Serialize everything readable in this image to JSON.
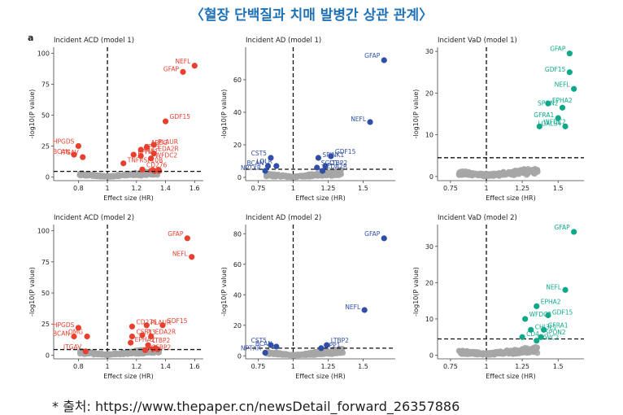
{
  "figure": {
    "title": "〈혈장 단백질과 치매 발병간 상관 관계〉",
    "panel_letter": "a",
    "source": "* 출처: https://www.thepaper.cn/newsDetail_forward_26357886",
    "colors": {
      "acd": "#e8402f",
      "ad": "#2f4ea8",
      "vad": "#0fa98a",
      "nonsig": "#a6a6a6"
    }
  },
  "chart_data": [
    {
      "type": "scatter",
      "title": "Incident ACD (model 1)",
      "xlabel": "Effect size (HR)",
      "ylabel": "-log10(P value)",
      "xlim": [
        0.63,
        1.66
      ],
      "ylim": [
        -3,
        105
      ],
      "xticks": [
        0.8,
        1.0,
        1.2,
        1.4,
        1.6
      ],
      "yticks": [
        0,
        25,
        50,
        75,
        100
      ],
      "threshold_y": 4.5,
      "reference_x": 1.0,
      "color": "#e8402f",
      "labeled_points": [
        {
          "label": "NEFL",
          "x": 1.6,
          "y": 90
        },
        {
          "label": "GFAP",
          "x": 1.52,
          "y": 85
        },
        {
          "label": "GDF15",
          "x": 1.4,
          "y": 45
        },
        {
          "label": "PLAUR",
          "x": 1.32,
          "y": 26
        },
        {
          "label": "AREG",
          "x": 1.27,
          "y": 24
        },
        {
          "label": "TFF3",
          "x": 1.23,
          "y": 22
        },
        {
          "label": "EDA2R",
          "x": 1.32,
          "y": 19
        },
        {
          "label": "EPHA2",
          "x": 1.18,
          "y": 18
        },
        {
          "label": "PI3",
          "x": 1.23,
          "y": 17
        },
        {
          "label": "WFDC2",
          "x": 1.3,
          "y": 15
        },
        {
          "label": "HPGDS",
          "x": 0.8,
          "y": 25
        },
        {
          "label": "BCAN",
          "x": 0.77,
          "y": 18
        },
        {
          "label": "ITGAV",
          "x": 0.83,
          "y": 16
        },
        {
          "label": "TNFRSF10B",
          "x": 1.11,
          "y": 11
        },
        {
          "label": "CD276",
          "x": 1.24,
          "y": 6
        }
      ]
    },
    {
      "type": "scatter",
      "title": "Incident AD (model 1)",
      "xlabel": "Effect size (HR)",
      "ylabel": "-log10(P value)",
      "xlim": [
        0.66,
        1.73
      ],
      "ylim": [
        -2,
        80
      ],
      "xticks": [
        0.75,
        1.0,
        1.25,
        1.5
      ],
      "yticks": [
        0,
        20,
        40,
        60
      ],
      "threshold_y": 5,
      "reference_x": 1.0,
      "color": "#2f4ea8",
      "labeled_points": [
        {
          "label": "GFAP",
          "x": 1.65,
          "y": 72
        },
        {
          "label": "NEFL",
          "x": 1.55,
          "y": 34
        },
        {
          "label": "GDF15",
          "x": 1.27,
          "y": 13
        },
        {
          "label": "SPINK1",
          "x": 1.18,
          "y": 12
        },
        {
          "label": "CST5",
          "x": 0.84,
          "y": 12
        },
        {
          "label": "BCAN",
          "x": 0.82,
          "y": 7
        },
        {
          "label": "LDLR",
          "x": 0.88,
          "y": 7
        },
        {
          "label": "NPTXR",
          "x": 0.8,
          "y": 4
        },
        {
          "label": "SGO1",
          "x": 1.17,
          "y": 6
        },
        {
          "label": "LTBP2",
          "x": 1.23,
          "y": 7
        },
        {
          "label": "EDA2R",
          "x": 1.21,
          "y": 4
        }
      ]
    },
    {
      "type": "scatter",
      "title": "Incident VaD (model 1)",
      "xlabel": "Effect size (HR)",
      "ylabel": "-log10(P value)",
      "xlim": [
        0.66,
        1.68
      ],
      "ylim": [
        -1,
        31
      ],
      "xticks": [
        0.75,
        1.0,
        1.25,
        1.5
      ],
      "yticks": [
        0,
        10,
        20,
        30
      ],
      "threshold_y": 4.5,
      "reference_x": 1.0,
      "color": "#0fa98a",
      "labeled_points": [
        {
          "label": "GFAP",
          "x": 1.58,
          "y": 29.5
        },
        {
          "label": "GDF15",
          "x": 1.58,
          "y": 25
        },
        {
          "label": "NEFL",
          "x": 1.61,
          "y": 21
        },
        {
          "label": "EPHA2",
          "x": 1.43,
          "y": 17.5
        },
        {
          "label": "SPON2",
          "x": 1.53,
          "y": 16.5
        },
        {
          "label": "GFRA1",
          "x": 1.5,
          "y": 14
        },
        {
          "label": "WFDC2",
          "x": 1.37,
          "y": 12
        },
        {
          "label": "LGALS4",
          "x": 1.55,
          "y": 12
        }
      ]
    },
    {
      "type": "scatter",
      "title": "Incident ACD (model 2)",
      "xlabel": "Effect size (HR)",
      "ylabel": "-log10(P value)",
      "xlim": [
        0.63,
        1.66
      ],
      "ylim": [
        -3,
        105
      ],
      "xticks": [
        0.8,
        1.0,
        1.2,
        1.4,
        1.6
      ],
      "yticks": [
        0,
        25,
        50,
        75,
        100
      ],
      "threshold_y": 4.5,
      "reference_x": 1.0,
      "color": "#e8402f",
      "labeled_points": [
        {
          "label": "GFAP",
          "x": 1.55,
          "y": 94
        },
        {
          "label": "NEFL",
          "x": 1.58,
          "y": 79
        },
        {
          "label": "GDF15",
          "x": 1.38,
          "y": 24
        },
        {
          "label": "PLAUR",
          "x": 1.27,
          "y": 24
        },
        {
          "label": "CD276",
          "x": 1.17,
          "y": 23
        },
        {
          "label": "HPGDS",
          "x": 0.8,
          "y": 22
        },
        {
          "label": "CSF1",
          "x": 1.17,
          "y": 15
        },
        {
          "label": "PI3",
          "x": 1.24,
          "y": 16
        },
        {
          "label": "EDA2R",
          "x": 1.3,
          "y": 15
        },
        {
          "label": "BCAN",
          "x": 0.77,
          "y": 15
        },
        {
          "label": "OMG",
          "x": 0.86,
          "y": 15
        },
        {
          "label": "EPHA2",
          "x": 1.16,
          "y": 10
        },
        {
          "label": "LTBP2",
          "x": 1.28,
          "y": 8
        },
        {
          "label": "IGFBP2",
          "x": 1.26,
          "y": 4
        },
        {
          "label": "ITGAV",
          "x": 0.85,
          "y": 3
        }
      ]
    },
    {
      "type": "scatter",
      "title": "Incident AD (model 2)",
      "xlabel": "Effect size (HR)",
      "ylabel": "-log10(P value)",
      "xlim": [
        0.66,
        1.73
      ],
      "ylim": [
        -2,
        86
      ],
      "xticks": [
        0.75,
        1.0,
        1.25,
        1.5
      ],
      "yticks": [
        0,
        20,
        40,
        60,
        80
      ],
      "threshold_y": 5,
      "reference_x": 1.0,
      "color": "#2f4ea8",
      "labeled_points": [
        {
          "label": "GFAP",
          "x": 1.65,
          "y": 77
        },
        {
          "label": "NEFL",
          "x": 1.51,
          "y": 30
        },
        {
          "label": "LTBP2",
          "x": 1.24,
          "y": 7
        },
        {
          "label": "SPP1",
          "x": 1.2,
          "y": 5
        },
        {
          "label": "CST5",
          "x": 0.84,
          "y": 7
        },
        {
          "label": "BCAN",
          "x": 0.88,
          "y": 6
        },
        {
          "label": "NPTXR",
          "x": 0.8,
          "y": 2
        }
      ]
    },
    {
      "type": "scatter",
      "title": "Incident VaD (model 2)",
      "xlabel": "Effect size (HR)",
      "ylabel": "-log10(P value)",
      "xlim": [
        0.66,
        1.68
      ],
      "ylim": [
        -1,
        36
      ],
      "xticks": [
        0.75,
        1.0,
        1.25,
        1.5
      ],
      "yticks": [
        0,
        10,
        20,
        30
      ],
      "threshold_y": 4.5,
      "reference_x": 1.0,
      "color": "#0fa98a",
      "labeled_points": [
        {
          "label": "GFAP",
          "x": 1.61,
          "y": 34
        },
        {
          "label": "NEFL",
          "x": 1.55,
          "y": 18
        },
        {
          "label": "EPHA2",
          "x": 1.35,
          "y": 13.5
        },
        {
          "label": "GDF15",
          "x": 1.43,
          "y": 11
        },
        {
          "label": "WFDC2",
          "x": 1.27,
          "y": 10
        },
        {
          "label": "CHI3L1",
          "x": 1.31,
          "y": 7
        },
        {
          "label": "GFRA1",
          "x": 1.4,
          "y": 7
        },
        {
          "label": "CD4",
          "x": 1.25,
          "y": 5
        },
        {
          "label": "SPON2",
          "x": 1.38,
          "y": 5
        },
        {
          "label": "VWC2",
          "x": 1.35,
          "y": 4
        }
      ]
    }
  ]
}
